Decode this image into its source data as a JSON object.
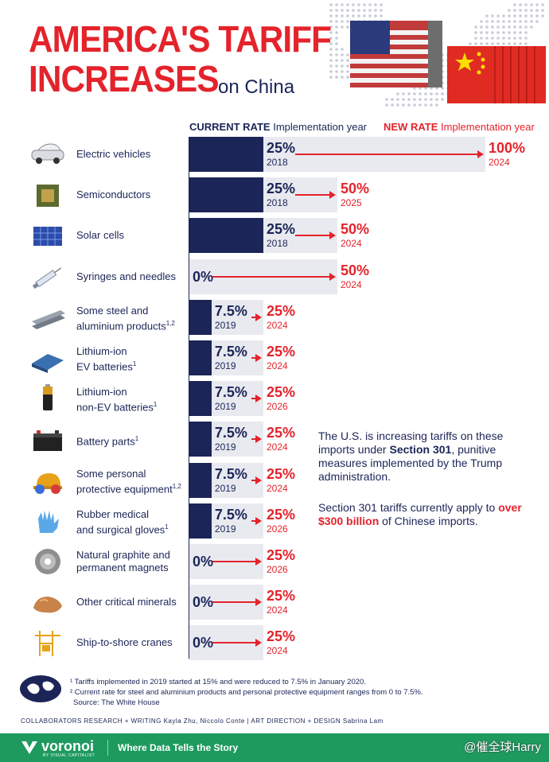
{
  "title": {
    "line1": "AMERICA'S TARIFF",
    "line2": "INCREASES",
    "subtitle": "on China"
  },
  "headers": {
    "current_rate": "CURRENT RATE",
    "current_impl": "Implementation year",
    "new_rate": "NEW RATE",
    "new_impl": "Implementation year"
  },
  "chart_data": {
    "type": "bar",
    "categories": [
      "Electric vehicles",
      "Semiconductors",
      "Solar cells",
      "Syringes and needles",
      "Some steel and aluminium products",
      "Lithium-ion EV batteries",
      "Lithium-ion non-EV batteries",
      "Battery parts",
      "Some personal protective equipment",
      "Rubber medical and surgical gloves",
      "Natural graphite and permanent magnets",
      "Other critical minerals",
      "Ship-to-shore cranes"
    ],
    "series": [
      {
        "name": "CURRENT RATE",
        "values": [
          25,
          25,
          25,
          0,
          7.5,
          7.5,
          7.5,
          7.5,
          7.5,
          7.5,
          0,
          0,
          0
        ],
        "years": [
          "2018",
          "2018",
          "2018",
          "",
          "2019",
          "2019",
          "2019",
          "2019",
          "2019",
          "2019",
          "",
          "",
          ""
        ]
      },
      {
        "name": "NEW RATE",
        "values": [
          100,
          50,
          50,
          50,
          25,
          25,
          25,
          25,
          25,
          25,
          25,
          25,
          25
        ],
        "years": [
          "2024",
          "2025",
          "2024",
          "2024",
          "2024",
          "2024",
          "2026",
          "2024",
          "2024",
          "2026",
          "2026",
          "2024",
          "2024"
        ]
      }
    ],
    "xlim": [
      0,
      100
    ],
    "colors": {
      "current": "#1b2557",
      "new": "#e4232b",
      "background": "#e8eaf0"
    }
  },
  "rows": [
    {
      "label": "Electric vehicles",
      "sup": "",
      "icon": "car-icon",
      "cur": "25%",
      "cur_year": "2018",
      "new": "100%",
      "new_year": "2024"
    },
    {
      "label": "Semiconductors",
      "sup": "",
      "icon": "chip-icon",
      "cur": "25%",
      "cur_year": "2018",
      "new": "50%",
      "new_year": "2025"
    },
    {
      "label": "Solar cells",
      "sup": "",
      "icon": "solar-panel-icon",
      "cur": "25%",
      "cur_year": "2018",
      "new": "50%",
      "new_year": "2024"
    },
    {
      "label": "Syringes and needles",
      "sup": "",
      "icon": "syringe-icon",
      "cur": "0%",
      "cur_year": "",
      "new": "50%",
      "new_year": "2024"
    },
    {
      "label": "Some steel and\naluminium products",
      "sup": "1,2",
      "icon": "steel-beam-icon",
      "cur": "7.5%",
      "cur_year": "2019",
      "new": "25%",
      "new_year": "2024"
    },
    {
      "label": "Lithium-ion\nEV batteries",
      "sup": "1",
      "icon": "ev-battery-icon",
      "cur": "7.5%",
      "cur_year": "2019",
      "new": "25%",
      "new_year": "2024"
    },
    {
      "label": "Lithium-ion\nnon-EV batteries",
      "sup": "1",
      "icon": "aa-battery-icon",
      "cur": "7.5%",
      "cur_year": "2019",
      "new": "25%",
      "new_year": "2026"
    },
    {
      "label": "Battery parts",
      "sup": "1",
      "icon": "car-battery-icon",
      "cur": "7.5%",
      "cur_year": "2019",
      "new": "25%",
      "new_year": "2024"
    },
    {
      "label": "Some personal\nprotective equipment",
      "sup": "1,2",
      "icon": "hard-hat-icon",
      "cur": "7.5%",
      "cur_year": "2019",
      "new": "25%",
      "new_year": "2024"
    },
    {
      "label": "Rubber medical\nand surgical gloves",
      "sup": "1",
      "icon": "glove-icon",
      "cur": "7.5%",
      "cur_year": "2019",
      "new": "25%",
      "new_year": "2026"
    },
    {
      "label": "Natural graphite and\npermanent magnets",
      "sup": "",
      "icon": "graphite-roll-icon",
      "cur": "0%",
      "cur_year": "",
      "new": "25%",
      "new_year": "2026"
    },
    {
      "label": "Other critical minerals",
      "sup": "",
      "icon": "mineral-rock-icon",
      "cur": "0%",
      "cur_year": "",
      "new": "25%",
      "new_year": "2024"
    },
    {
      "label": "Ship-to-shore cranes",
      "sup": "",
      "icon": "crane-icon",
      "cur": "0%",
      "cur_year": "",
      "new": "25%",
      "new_year": "2024"
    }
  ],
  "note": {
    "p1_a": "The U.S. is increasing tariffs on these imports under ",
    "p1_b": "Section 301",
    "p1_c": ", punitive measures implemented by the Trump administration.",
    "p2_a": "Section 301 tariffs currently apply to ",
    "p2_b": "over $300 billion",
    "p2_c": " of Chinese imports."
  },
  "footnotes": {
    "f1": "¹ Tariffs implemented in 2019 started at 15% and were reduced to 7.5% in January 2020.",
    "f2": "² Current rate for steel and aluminium products and personal protective equipment ranges from 0 to 7.5%.",
    "source": "Source: The White House"
  },
  "collaborators": "COLLABORATORS    RESEARCH + WRITING Kayla Zhu, Niccolo Conte  |  ART DIRECTION + DESIGN Sabrina Lam",
  "footer": {
    "brand": "voronoi",
    "brand_sub": "BY VISUAL CAPITALIST",
    "tagline": "Where Data Tells the Story"
  },
  "watermark": "@催全球Harry"
}
